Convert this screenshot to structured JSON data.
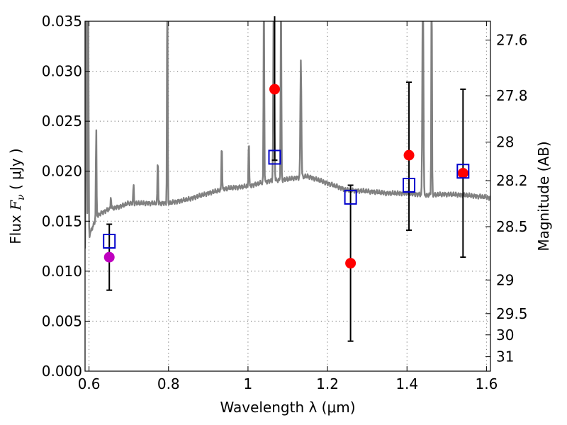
{
  "chart_data": {
    "type": "scatter",
    "xlabel": "Wavelength  λ (μm)",
    "ylabel_prefix": "Flux  ",
    "ylabel_symbol": "F",
    "ylabel_sub": "ν",
    "ylabel_suffix": "  ( μJy )",
    "ylabel_right": "Magnitude (AB)",
    "xlim": [
      0.59,
      1.61
    ],
    "ylim": [
      0.0,
      0.035
    ],
    "grid": true,
    "x_ticks": [
      {
        "v": 0.6,
        "label": "0.6"
      },
      {
        "v": 0.8,
        "label": "0.8"
      },
      {
        "v": 1.0,
        "label": "1"
      },
      {
        "v": 1.2,
        "label": "1.2"
      },
      {
        "v": 1.4,
        "label": "1.4"
      },
      {
        "v": 1.6,
        "label": "1.6"
      }
    ],
    "y_ticks": [
      {
        "v": 0.0,
        "label": "0.000"
      },
      {
        "v": 0.005,
        "label": "0.005"
      },
      {
        "v": 0.01,
        "label": "0.010"
      },
      {
        "v": 0.015,
        "label": "0.015"
      },
      {
        "v": 0.02,
        "label": "0.020"
      },
      {
        "v": 0.025,
        "label": "0.025"
      },
      {
        "v": 0.03,
        "label": "0.030"
      },
      {
        "v": 0.035,
        "label": "0.035"
      }
    ],
    "mag_ticks": [
      {
        "mag": 27.6,
        "label": "27.6"
      },
      {
        "mag": 27.8,
        "label": "27.8"
      },
      {
        "mag": 28.0,
        "label": "28"
      },
      {
        "mag": 28.2,
        "label": "28.2"
      },
      {
        "mag": 28.5,
        "label": "28.5"
      },
      {
        "mag": 29.0,
        "label": "29"
      },
      {
        "mag": 29.5,
        "label": "29.5"
      },
      {
        "mag": 30.0,
        "label": "30"
      },
      {
        "mag": 31.0,
        "label": "31"
      }
    ],
    "model_spectrum": {
      "color": "#808080",
      "base": [
        [
          0.59,
          0.0105
        ],
        [
          0.6,
          0.0135
        ],
        [
          0.61,
          0.0145
        ],
        [
          0.62,
          0.0155
        ],
        [
          0.63,
          0.0158
        ],
        [
          0.65,
          0.0162
        ],
        [
          0.68,
          0.0165
        ],
        [
          0.7,
          0.0168
        ],
        [
          0.75,
          0.0168
        ],
        [
          0.8,
          0.0168
        ],
        [
          0.85,
          0.0172
        ],
        [
          0.9,
          0.0178
        ],
        [
          0.95,
          0.0183
        ],
        [
          1.0,
          0.0185
        ],
        [
          1.05,
          0.019
        ],
        [
          1.1,
          0.0192
        ],
        [
          1.15,
          0.0195
        ],
        [
          1.2,
          0.0188
        ],
        [
          1.25,
          0.0181
        ],
        [
          1.3,
          0.018
        ],
        [
          1.35,
          0.0178
        ],
        [
          1.4,
          0.0178
        ],
        [
          1.45,
          0.0176
        ],
        [
          1.5,
          0.0177
        ],
        [
          1.55,
          0.0176
        ],
        [
          1.6,
          0.0174
        ],
        [
          1.61,
          0.0173
        ]
      ],
      "lines": [
        [
          0.593,
          0.04,
          0.003
        ],
        [
          0.598,
          0.04,
          0.002
        ],
        [
          0.618,
          0.0245,
          0.002
        ],
        [
          0.655,
          0.0175,
          0.002
        ],
        [
          0.712,
          0.0187,
          0.002
        ],
        [
          0.773,
          0.0215,
          0.002
        ],
        [
          0.797,
          0.04,
          0.002
        ],
        [
          0.934,
          0.0231,
          0.002
        ],
        [
          1.002,
          0.0234,
          0.002
        ],
        [
          1.04,
          0.04,
          0.002
        ],
        [
          1.065,
          0.04,
          0.003
        ],
        [
          1.083,
          0.04,
          0.002
        ],
        [
          1.133,
          0.0313,
          0.003
        ],
        [
          1.44,
          0.04,
          0.003
        ],
        [
          1.462,
          0.04,
          0.002
        ]
      ]
    },
    "series": [
      {
        "name": "",
        "marker": "circle",
        "color": "#ff0000",
        "points": [
          {
            "x": 1.067,
            "y": 0.0282,
            "err": [
              0.0211,
              0.0355
            ]
          },
          {
            "x": 1.258,
            "y": 0.0108,
            "err": [
              0.003,
              0.0186
            ]
          },
          {
            "x": 1.405,
            "y": 0.0216,
            "err": [
              0.0141,
              0.0289
            ]
          },
          {
            "x": 1.541,
            "y": 0.0198,
            "err": [
              0.0114,
              0.0282
            ]
          }
        ]
      },
      {
        "name": "",
        "marker": "circle",
        "color": "#bf00bf",
        "points": [
          {
            "x": 0.651,
            "y": 0.0114,
            "err": [
              0.0081,
              0.0147
            ]
          }
        ]
      },
      {
        "name": "",
        "marker": "open-square",
        "color": "#0000cc",
        "points": [
          {
            "x": 0.651,
            "y": 0.013
          },
          {
            "x": 1.067,
            "y": 0.0214
          },
          {
            "x": 1.258,
            "y": 0.0174
          },
          {
            "x": 1.405,
            "y": 0.0186
          },
          {
            "x": 1.541,
            "y": 0.02
          }
        ]
      }
    ]
  }
}
